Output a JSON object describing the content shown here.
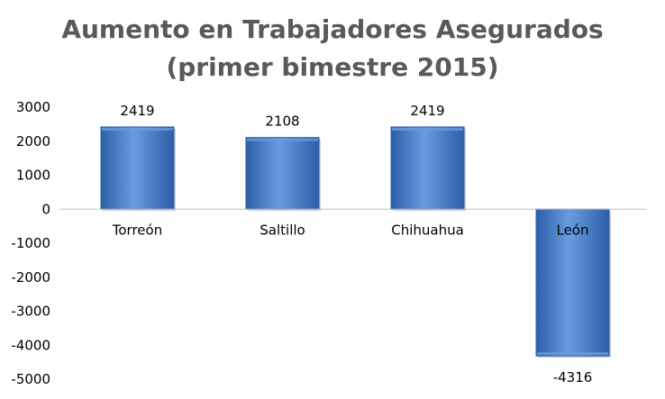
{
  "chart_data": {
    "type": "bar",
    "title_lines": [
      "Aumento en Trabajadores Asegurados",
      "(primer bimestre 2015)"
    ],
    "categories": [
      "Torreón",
      "Saltillo",
      "Chihuahua",
      "León"
    ],
    "values": [
      2419,
      2108,
      2419,
      -4316
    ],
    "data_labels": [
      "2419",
      "2108",
      "2419",
      "-4316"
    ],
    "y_ticks": [
      3000,
      2000,
      1000,
      0,
      -1000,
      -2000,
      -3000,
      -4000,
      -5000
    ],
    "ylim": [
      -5000,
      3000
    ],
    "grid": false,
    "legend": "none",
    "colors": {
      "bar_light": "#6a9be0",
      "bar_mid": "#4a7fd0",
      "bar_dark": "#2c5fa8",
      "axis": "#bfbfbf",
      "title": "#595959"
    }
  }
}
